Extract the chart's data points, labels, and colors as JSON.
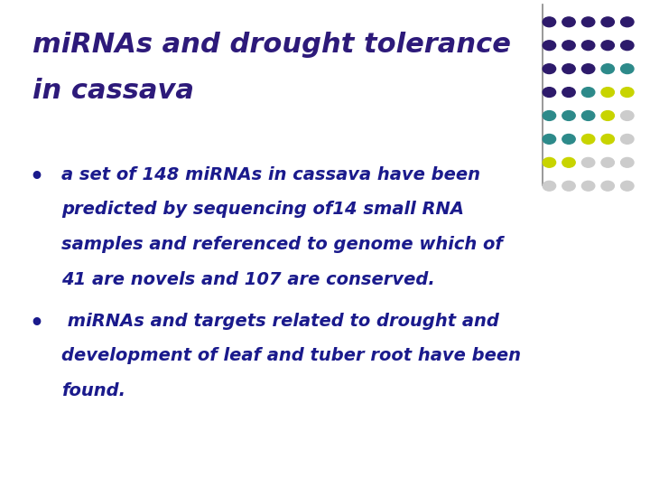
{
  "title_line1": "miRNAs and drought tolerance",
  "title_line2": "in cassava",
  "title_color": "#2d1a7a",
  "bullet1_line1": "a set of 148 miRNAs in cassava have been",
  "bullet1_line2": "predicted by sequencing of14 small RNA",
  "bullet1_line3": "samples and referenced to genome which of",
  "bullet1_line4": "41 are novels and 107 are conserved.",
  "bullet2_line1": " miRNAs and targets related to drought and",
  "bullet2_line2": "development of leaf and tuber root have been",
  "bullet2_line3": "found.",
  "text_color": "#1a1a8c",
  "bullet_color": "#1a1a8c",
  "bg_color": "#ffffff",
  "divider_color": "#888888",
  "dot_grid_pattern": [
    [
      "#2d1a6b",
      "#2d1a6b",
      "#2d1a6b",
      "#2d1a6b",
      "#2d1a6b"
    ],
    [
      "#2d1a6b",
      "#2d1a6b",
      "#2d1a6b",
      "#2d1a6b",
      "#2d1a6b"
    ],
    [
      "#2d1a6b",
      "#2d1a6b",
      "#2d1a6b",
      "#2d8a8a",
      "#2d8a8a"
    ],
    [
      "#2d1a6b",
      "#2d1a6b",
      "#2d8a8a",
      "#c8d400",
      "#c8d400"
    ],
    [
      "#2d8a8a",
      "#2d8a8a",
      "#2d8a8a",
      "#c8d400",
      "#cccccc"
    ],
    [
      "#2d8a8a",
      "#2d8a8a",
      "#c8d400",
      "#c8d400",
      "#cccccc"
    ],
    [
      "#c8d400",
      "#c8d400",
      "#cccccc",
      "#cccccc",
      "#cccccc"
    ],
    [
      "#cccccc",
      "#cccccc",
      "#cccccc",
      "#cccccc",
      "#cccccc"
    ]
  ],
  "title_fontsize": 22,
  "body_fontsize": 14,
  "bullet_fontsize": 18
}
